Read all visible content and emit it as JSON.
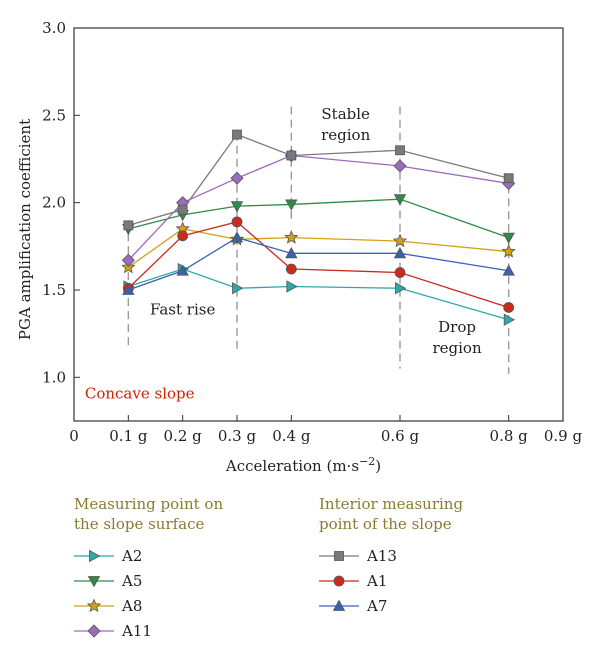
{
  "colors": {
    "A2": "#2fa8a8",
    "A5": "#2e8b45",
    "A8": "#d4a017",
    "A11": "#9b6bbf",
    "A13": "#7a7a7a",
    "A1": "#cc2a1e",
    "A7": "#3a62b0",
    "legend_title": "#8a7a32",
    "note": "#cc2200",
    "guide": "#9a9a9a"
  },
  "chart_data": {
    "type": "line",
    "xlabel_main": "Acceleration (m·s",
    "xlabel_sup": "−2",
    "xlabel_end": ")",
    "ylabel": "PGA amplification coefficient",
    "ylim": [
      0.75,
      3.0
    ],
    "xlim": [
      0,
      0.9
    ],
    "y_ticks": [
      "1.0",
      "1.5",
      "2.0",
      "2.5",
      "3.0"
    ],
    "x_ticks": [
      {
        "value": 0,
        "label": "0"
      },
      {
        "value": 0.1,
        "label": "0.1 g"
      },
      {
        "value": 0.2,
        "label": "0.2 g"
      },
      {
        "value": 0.3,
        "label": "0.3 g"
      },
      {
        "value": 0.4,
        "label": "0.4 g"
      },
      {
        "value": 0.6,
        "label": "0.6 g"
      },
      {
        "value": 0.8,
        "label": "0.8 g"
      },
      {
        "value": 0.9,
        "label": "0.9 g"
      }
    ],
    "x": [
      0.1,
      0.2,
      0.3,
      0.4,
      0.6,
      0.8
    ],
    "guide_lines": [
      {
        "x": 0.1,
        "y_from": 1.17,
        "y_to": 1.9
      },
      {
        "x": 0.3,
        "y_from": 1.15,
        "y_to": 2.4
      },
      {
        "x": 0.4,
        "y_from": 1.9,
        "y_to": 2.55
      },
      {
        "x": 0.6,
        "y_from": 1.05,
        "y_to": 2.55
      },
      {
        "x": 0.8,
        "y_from": 1.02,
        "y_to": 2.1
      }
    ],
    "annotations": [
      {
        "id": "fast-rise",
        "lines": [
          "Fast rise"
        ],
        "x": 0.2,
        "y": 1.36
      },
      {
        "id": "stable-region",
        "lines": [
          "Stable",
          "region"
        ],
        "x": 0.5,
        "y": 2.48
      },
      {
        "id": "drop-region",
        "lines": [
          "Drop",
          "region"
        ],
        "x": 0.705,
        "y": 1.26
      }
    ],
    "note": {
      "text": "Concave slope",
      "x": 0.02,
      "y": 0.88
    },
    "series": [
      {
        "name": "A2",
        "marker": "tri-right",
        "values": [
          1.52,
          1.62,
          1.51,
          1.52,
          1.51,
          1.33
        ]
      },
      {
        "name": "A5",
        "marker": "tri-down",
        "values": [
          1.85,
          1.93,
          1.98,
          1.99,
          2.02,
          1.8
        ]
      },
      {
        "name": "A8",
        "marker": "star",
        "values": [
          1.63,
          1.85,
          1.79,
          1.8,
          1.78,
          1.72
        ]
      },
      {
        "name": "A11",
        "marker": "diamond",
        "values": [
          1.67,
          2.0,
          2.14,
          2.27,
          2.21,
          2.11
        ]
      },
      {
        "name": "A13",
        "marker": "square",
        "values": [
          1.87,
          1.96,
          2.39,
          2.27,
          2.3,
          2.14
        ]
      },
      {
        "name": "A1",
        "marker": "circle",
        "values": [
          1.51,
          1.81,
          1.89,
          1.62,
          1.6,
          1.4
        ]
      },
      {
        "name": "A7",
        "marker": "tri-up",
        "values": [
          1.5,
          1.61,
          1.8,
          1.71,
          1.71,
          1.61
        ]
      }
    ]
  },
  "legend": {
    "surface": {
      "title_line1": "Measuring point on",
      "title_line2": "the slope surface",
      "items": [
        "A2",
        "A5",
        "A8",
        "A11"
      ]
    },
    "interior": {
      "title_line1": "Interior measuring",
      "title_line2": "point of the slope",
      "items": [
        "A13",
        "A1",
        "A7"
      ]
    }
  }
}
